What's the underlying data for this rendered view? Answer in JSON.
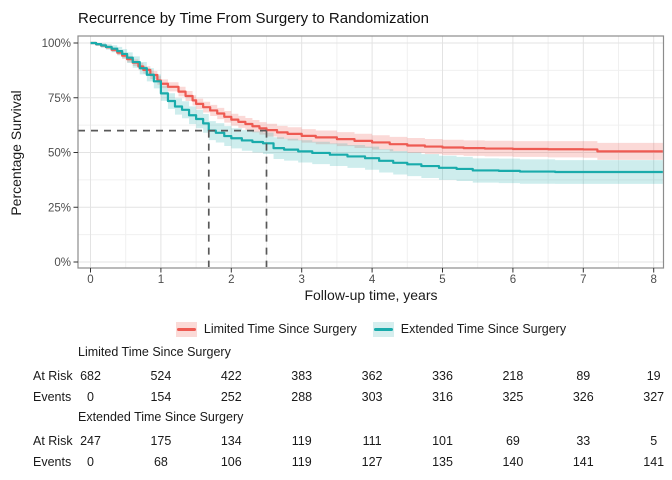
{
  "title": "Recurrence by Time From Surgery to Randomization",
  "chart_data": {
    "type": "line",
    "subtype": "kaplan-meier-step",
    "title": "Recurrence by Time From Surgery to Randomization",
    "xlabel": "Follow-up time, years",
    "ylabel": "Percentage Survival",
    "xlim": [
      -0.18,
      8.13
    ],
    "ylim": [
      0,
      100
    ],
    "xticks": [
      0,
      1,
      2,
      3,
      4,
      5,
      6,
      7,
      8
    ],
    "yticks": [
      0,
      25,
      50,
      75,
      100
    ],
    "ytick_labels": [
      "0%",
      "25%",
      "50%",
      "75%",
      "100%"
    ],
    "grid": "major-and-minor",
    "legend_position": "bottom",
    "colors": {
      "grid_major": "#e3e3e3",
      "grid_minor": "#f0f0f0",
      "panel_border": "#8c8c8c",
      "tick": "#333333",
      "tick_label": "#4d4d4d",
      "reference_line": "#595959"
    },
    "series": [
      {
        "name": "Limited Time Since Surgery",
        "color": "#ee5a52",
        "band_fill": "rgba(238,90,82,0.23)",
        "swatch_fill": "#fbdad7",
        "points": [
          [
            0,
            100
          ],
          [
            0.08,
            99.4
          ],
          [
            0.15,
            98.8
          ],
          [
            0.22,
            98.1
          ],
          [
            0.3,
            96.9
          ],
          [
            0.38,
            95.6
          ],
          [
            0.45,
            94.2
          ],
          [
            0.52,
            92.6
          ],
          [
            0.6,
            91.0
          ],
          [
            0.68,
            89.3
          ],
          [
            0.75,
            87.7
          ],
          [
            0.85,
            85.4
          ],
          [
            0.95,
            82.9
          ],
          [
            1.0,
            81.4
          ],
          [
            1.1,
            80.0
          ],
          [
            1.25,
            77.8
          ],
          [
            1.35,
            75.8
          ],
          [
            1.45,
            73.8
          ],
          [
            1.5,
            72.2
          ],
          [
            1.6,
            70.7
          ],
          [
            1.7,
            69.2
          ],
          [
            1.8,
            67.8
          ],
          [
            1.9,
            66.3
          ],
          [
            2.0,
            65.0
          ],
          [
            2.1,
            64.0
          ],
          [
            2.2,
            63.0
          ],
          [
            2.3,
            62.0
          ],
          [
            2.4,
            61.0
          ],
          [
            2.5,
            60.2
          ],
          [
            2.65,
            59.2
          ],
          [
            2.8,
            58.5
          ],
          [
            3.0,
            57.6
          ],
          [
            3.2,
            56.9
          ],
          [
            3.5,
            56.1
          ],
          [
            3.75,
            55.3
          ],
          [
            4.0,
            54.6
          ],
          [
            4.25,
            53.8
          ],
          [
            4.5,
            53.2
          ],
          [
            4.75,
            52.7
          ],
          [
            5.0,
            52.3
          ],
          [
            5.3,
            52.0
          ],
          [
            5.6,
            51.8
          ],
          [
            6.0,
            51.6
          ],
          [
            6.5,
            51.5
          ],
          [
            7.0,
            51.4
          ],
          [
            7.2,
            50.5
          ],
          [
            8.13,
            50.5
          ]
        ],
        "ci_halfwidth": [
          [
            0,
            0.4
          ],
          [
            0.25,
            0.9
          ],
          [
            0.5,
            1.4
          ],
          [
            1,
            2.0
          ],
          [
            1.5,
            2.4
          ],
          [
            2,
            2.7
          ],
          [
            2.5,
            2.9
          ],
          [
            3,
            3.1
          ],
          [
            4,
            3.3
          ],
          [
            5,
            3.5
          ],
          [
            6,
            3.6
          ],
          [
            7,
            3.8
          ],
          [
            8.13,
            4.3
          ]
        ]
      },
      {
        "name": "Extended Time Since Surgery",
        "color": "#19abab",
        "band_fill": "rgba(25,171,171,0.21)",
        "swatch_fill": "#d5eeee",
        "points": [
          [
            0,
            100
          ],
          [
            0.08,
            99.5
          ],
          [
            0.15,
            98.9
          ],
          [
            0.22,
            98.2
          ],
          [
            0.3,
            97.4
          ],
          [
            0.38,
            96.3
          ],
          [
            0.45,
            95.0
          ],
          [
            0.52,
            93.3
          ],
          [
            0.6,
            91.3
          ],
          [
            0.7,
            88.5
          ],
          [
            0.8,
            85.5
          ],
          [
            0.9,
            82.5
          ],
          [
            1.0,
            77.0
          ],
          [
            1.1,
            73.5
          ],
          [
            1.2,
            71.0
          ],
          [
            1.3,
            69.5
          ],
          [
            1.4,
            67.0
          ],
          [
            1.5,
            65.3
          ],
          [
            1.6,
            63.3
          ],
          [
            1.68,
            60.0
          ],
          [
            1.78,
            59.0
          ],
          [
            1.9,
            57.5
          ],
          [
            2.0,
            56.5
          ],
          [
            2.15,
            55.5
          ],
          [
            2.3,
            54.8
          ],
          [
            2.45,
            54.2
          ],
          [
            2.6,
            52.0
          ],
          [
            2.75,
            51.3
          ],
          [
            2.95,
            50.5
          ],
          [
            3.15,
            49.8
          ],
          [
            3.4,
            49.0
          ],
          [
            3.65,
            48.2
          ],
          [
            3.9,
            47.4
          ],
          [
            4.1,
            46.2
          ],
          [
            4.3,
            45.3
          ],
          [
            4.5,
            44.6
          ],
          [
            4.7,
            43.8
          ],
          [
            4.95,
            43.0
          ],
          [
            5.2,
            42.5
          ],
          [
            5.43,
            41.8
          ],
          [
            5.8,
            41.6
          ],
          [
            6.1,
            41.3
          ],
          [
            6.6,
            41.1
          ],
          [
            8.13,
            41.1
          ]
        ],
        "ci_halfwidth": [
          [
            0,
            0.6
          ],
          [
            0.25,
            1.4
          ],
          [
            0.5,
            2.4
          ],
          [
            1,
            3.4
          ],
          [
            1.5,
            4.2
          ],
          [
            2,
            4.6
          ],
          [
            2.5,
            4.9
          ],
          [
            3,
            5.1
          ],
          [
            4,
            5.3
          ],
          [
            5,
            5.5
          ],
          [
            6,
            5.6
          ],
          [
            7,
            5.3
          ],
          [
            8.13,
            5.3
          ]
        ]
      }
    ],
    "reference_lines": {
      "horizontal": {
        "y": 60,
        "x_from": "panel-left",
        "x_to": 2.5
      },
      "vertical": [
        {
          "x": 1.68,
          "y_from": "panel-bottom",
          "y_to": 60
        },
        {
          "x": 2.5,
          "y_from": "panel-bottom",
          "y_to": 60
        }
      ]
    }
  },
  "risk_table": {
    "times": [
      0,
      1,
      2,
      3,
      4,
      5,
      6,
      7,
      8
    ],
    "row_labels": {
      "at_risk": "At Risk",
      "events": "Events"
    },
    "groups": [
      {
        "name": "Limited Time Since Surgery",
        "at_risk": [
          "682",
          "524",
          "422",
          "383",
          "362",
          "336",
          "218",
          "89",
          "19"
        ],
        "events": [
          "0",
          "154",
          "252",
          "288",
          "303",
          "316",
          "325",
          "326",
          "327"
        ]
      },
      {
        "name": "Extended Time Since Surgery",
        "at_risk": [
          "247",
          "175",
          "134",
          "119",
          "111",
          "101",
          "69",
          "33",
          "5"
        ],
        "events": [
          "0",
          "68",
          "106",
          "119",
          "127",
          "135",
          "140",
          "141",
          "141"
        ]
      }
    ]
  }
}
